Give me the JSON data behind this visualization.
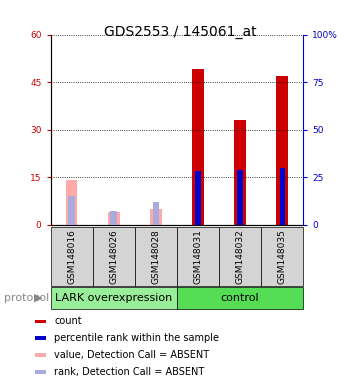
{
  "title": "GDS2553 / 145061_at",
  "samples": [
    "GSM148016",
    "GSM148026",
    "GSM148028",
    "GSM148031",
    "GSM148032",
    "GSM148035"
  ],
  "group_split": 3,
  "group_label_1": "LARK overexpression",
  "group_label_2": "control",
  "count_values": [
    null,
    null,
    null,
    49,
    33,
    47
  ],
  "percentile_values": [
    null,
    null,
    null,
    28,
    29,
    30
  ],
  "absent_value_values": [
    14,
    4,
    5,
    null,
    null,
    null
  ],
  "absent_rank_values": [
    15,
    7,
    12,
    null,
    null,
    null
  ],
  "ylim_left": [
    0,
    60
  ],
  "ylim_right": [
    0,
    100
  ],
  "yticks_left": [
    0,
    15,
    30,
    45,
    60
  ],
  "yticks_right": [
    0,
    25,
    50,
    75,
    100
  ],
  "ytick_labels_left": [
    "0",
    "15",
    "30",
    "45",
    "60"
  ],
  "ytick_labels_right": [
    "0",
    "25",
    "50",
    "75",
    "100%"
  ],
  "color_count": "#cc0000",
  "color_percentile": "#0000cc",
  "color_absent_value": "#ffaaaa",
  "color_absent_rank": "#aaaadd",
  "color_group1": "#99ee99",
  "color_group2": "#55dd55",
  "bar_width": 0.28,
  "group_label_fontsize": 8,
  "tick_label_fontsize": 6.5,
  "title_fontsize": 10,
  "legend_fontsize": 7,
  "protocol_fontsize": 8,
  "background_color": "#ffffff",
  "plot_bg_color": "#ffffff",
  "axis_color_left": "#cc0000",
  "axis_color_right": "#0000cc",
  "sample_box_color": "#d4d4d4"
}
